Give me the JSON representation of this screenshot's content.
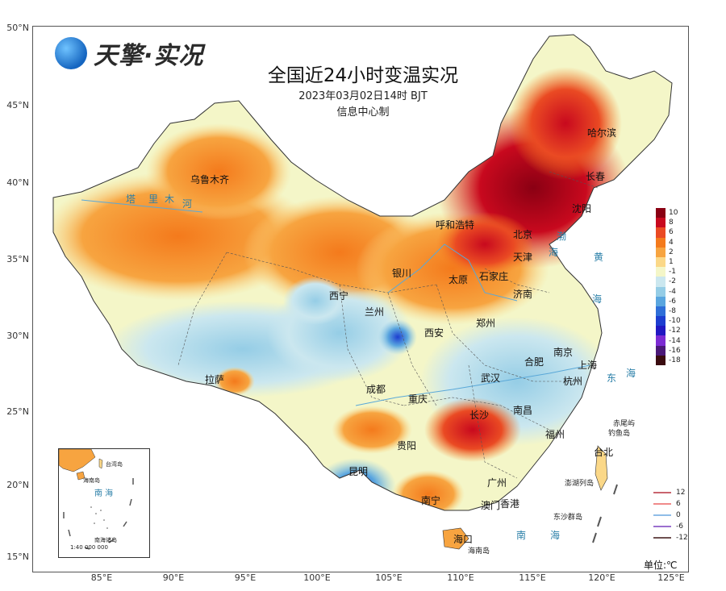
{
  "logo": {
    "text": "天擎·实况",
    "icon": "satellite-globe-icon"
  },
  "title": "全国近24小时变温实况",
  "subtitle": "2023年03月02日14时 BJT",
  "maker": "信息中心制",
  "unit": "单位:℃",
  "axes": {
    "lat_labels": [
      "50°N",
      "45°N",
      "40°N",
      "35°N",
      "30°N",
      "25°N",
      "20°N",
      "15°N"
    ],
    "lon_labels": [
      "85°E",
      "90°E",
      "95°E",
      "100°E",
      "105°E",
      "110°E",
      "115°E",
      "120°E",
      "125°E"
    ]
  },
  "legend": {
    "colors": [
      {
        "label": "10",
        "color": "#8a0013"
      },
      {
        "label": "8",
        "color": "#c8091e"
      },
      {
        "label": "6",
        "color": "#ea4a23"
      },
      {
        "label": "4",
        "color": "#f47a1c"
      },
      {
        "label": "2",
        "color": "#f7a440"
      },
      {
        "label": "1",
        "color": "#fbd888"
      },
      {
        "label": "-1",
        "color": "#f4f6c8"
      },
      {
        "label": "-2",
        "color": "#cbe7ef"
      },
      {
        "label": "-4",
        "color": "#95cde6"
      },
      {
        "label": "-6",
        "color": "#5aa6df"
      },
      {
        "label": "-8",
        "color": "#2f6fd8"
      },
      {
        "label": "-10",
        "color": "#1d3ed0"
      },
      {
        "label": "-12",
        "color": "#2118c2"
      },
      {
        "label": "-14",
        "color": "#7c2bd3"
      },
      {
        "label": "-16",
        "color": "#4b1878"
      },
      {
        "label": "-18",
        "color": "#3a0c10"
      }
    ],
    "lines": [
      {
        "label": "12",
        "color": "#c9646e"
      },
      {
        "label": "6",
        "color": "#f08a8a"
      },
      {
        "label": "0",
        "color": "#8fbde8"
      },
      {
        "label": "-6",
        "color": "#9b6fcf"
      },
      {
        "label": "-12",
        "color": "#6e5050"
      }
    ]
  },
  "cities": [
    {
      "name": "哈尔滨"
    },
    {
      "name": "长春"
    },
    {
      "name": "沈阳"
    },
    {
      "name": "呼和浩特"
    },
    {
      "name": "北京"
    },
    {
      "name": "天津"
    },
    {
      "name": "石家庄"
    },
    {
      "name": "太原"
    },
    {
      "name": "济南"
    },
    {
      "name": "银川"
    },
    {
      "name": "西宁"
    },
    {
      "name": "兰州"
    },
    {
      "name": "西安"
    },
    {
      "name": "郑州"
    },
    {
      "name": "合肥"
    },
    {
      "name": "南京"
    },
    {
      "name": "上海"
    },
    {
      "name": "杭州"
    },
    {
      "name": "武汉"
    },
    {
      "name": "成都"
    },
    {
      "name": "重庆"
    },
    {
      "name": "长沙"
    },
    {
      "name": "南昌"
    },
    {
      "name": "贵阳"
    },
    {
      "name": "昆明"
    },
    {
      "name": "南宁"
    },
    {
      "name": "广州"
    },
    {
      "name": "澳门"
    },
    {
      "name": "香港"
    },
    {
      "name": "海口"
    },
    {
      "name": "台北"
    },
    {
      "name": "拉萨"
    },
    {
      "name": "乌鲁木齐"
    },
    {
      "name": "福州"
    }
  ],
  "seas": [
    {
      "name": "渤"
    },
    {
      "name": "海"
    },
    {
      "name": "黄"
    },
    {
      "name": "海"
    },
    {
      "name": "东"
    },
    {
      "name": "海"
    },
    {
      "name": "南"
    },
    {
      "name": "海"
    }
  ],
  "rivers": [
    {
      "name": "塔"
    },
    {
      "name": "里"
    },
    {
      "name": "木"
    },
    {
      "name": "河"
    }
  ],
  "islands": [
    {
      "name": "赤尾屿"
    },
    {
      "name": "钓鱼岛"
    },
    {
      "name": "澎湖列岛"
    },
    {
      "name": "东沙群岛"
    },
    {
      "name": "海南岛"
    }
  ],
  "inset": {
    "labels": [
      {
        "name": "台湾岛"
      },
      {
        "name": "海南岛"
      },
      {
        "name": "南海诸岛"
      }
    ],
    "sea": "南 海",
    "scale": "1:40 000 000"
  }
}
